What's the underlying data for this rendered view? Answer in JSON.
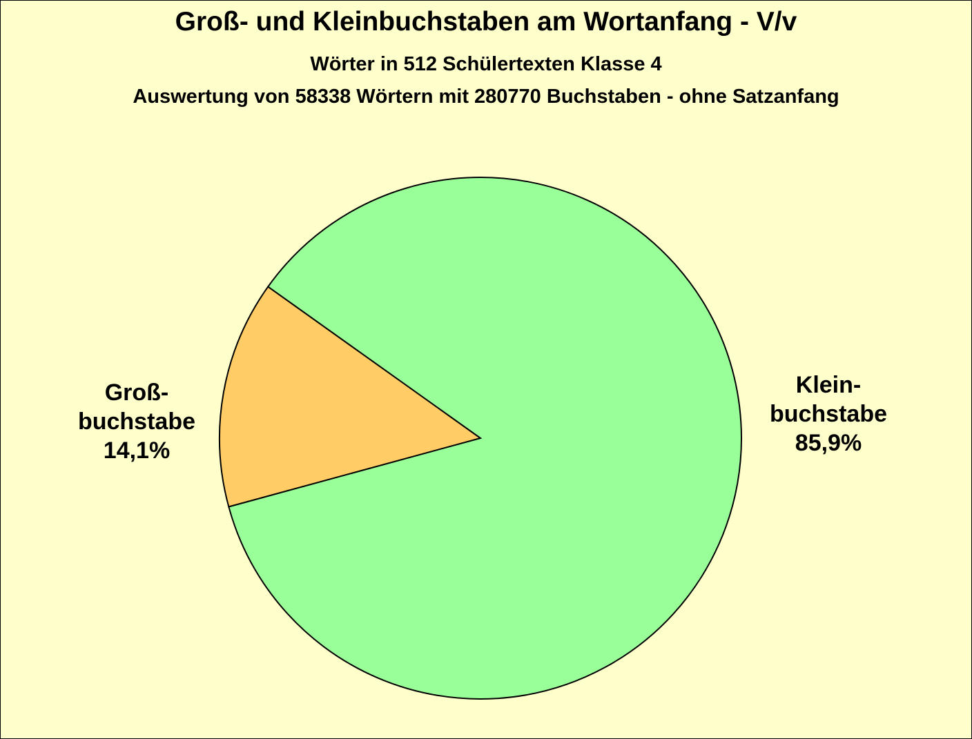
{
  "chart_data": {
    "type": "pie",
    "title": "Groß- und  Kleinbuchstaben am Wortanfang - V/v",
    "subtitle": "Wörter in 512 Schülertexten Klasse 4",
    "subtitle2": "Auswertung von 58338 Wörtern mit 280770 Buchstaben - ohne Satzanfang",
    "slices": [
      {
        "name_line1": "Groß-",
        "name_line2": "buchstabe",
        "label_value": "14,1%",
        "value": 14.1,
        "color": "#ffcc66"
      },
      {
        "name_line1": "Klein-",
        "name_line2": "buchstabe",
        "label_value": "85,9%",
        "value": 85.9,
        "color": "#99ff99"
      }
    ]
  },
  "colors": {
    "background": "#ffffcc",
    "outline": "#000000"
  }
}
